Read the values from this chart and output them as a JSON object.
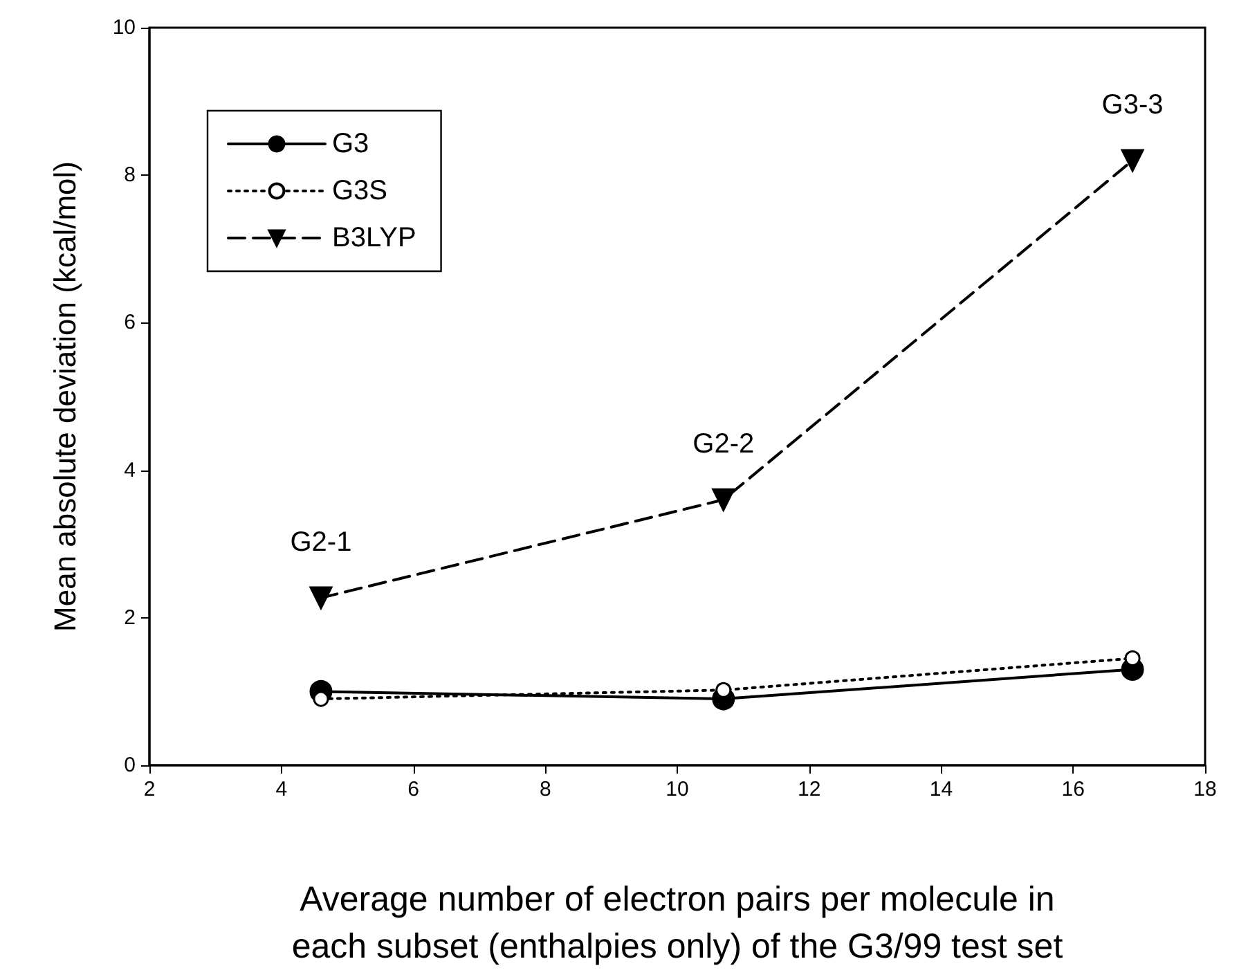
{
  "chart_data": {
    "type": "line",
    "xlabel": "Average number of electron pairs per molecule in\neach subset (enthalpies only) of the G3/99 test set",
    "ylabel": "Mean absolute deviation (kcal/mol)",
    "xlim": [
      2,
      18
    ],
    "xticks": [
      2,
      4,
      6,
      8,
      10,
      12,
      14,
      16,
      18
    ],
    "ylim": [
      0,
      10
    ],
    "yticks": [
      0,
      2,
      4,
      6,
      8,
      10
    ],
    "grid": false,
    "legend": "top left",
    "series": [
      {
        "name": "G3",
        "color": "#000000",
        "marker": "circle",
        "line_style": "solid",
        "x": [
          4.6,
          10.7,
          16.9
        ],
        "values": [
          1.0,
          0.9,
          1.3
        ]
      },
      {
        "name": "G3S",
        "color": "#000000",
        "marker": "open_circle",
        "line_style": "dotted",
        "x": [
          4.6,
          10.7,
          16.9
        ],
        "values": [
          0.9,
          1.02,
          1.45
        ]
      },
      {
        "name": "B3LYP",
        "color": "#000000",
        "marker": "triangle_down",
        "line_style": "dashed",
        "x": [
          4.6,
          10.7,
          16.9
        ],
        "values": [
          2.27,
          3.6,
          8.2
        ]
      }
    ],
    "annotations": [
      {
        "text": "G2-1",
        "x": 4.6,
        "y": 2.27
      },
      {
        "text": "G2-2",
        "x": 10.7,
        "y": 3.6
      },
      {
        "text": "G3-3",
        "x": 16.9,
        "y": 8.2
      }
    ]
  }
}
